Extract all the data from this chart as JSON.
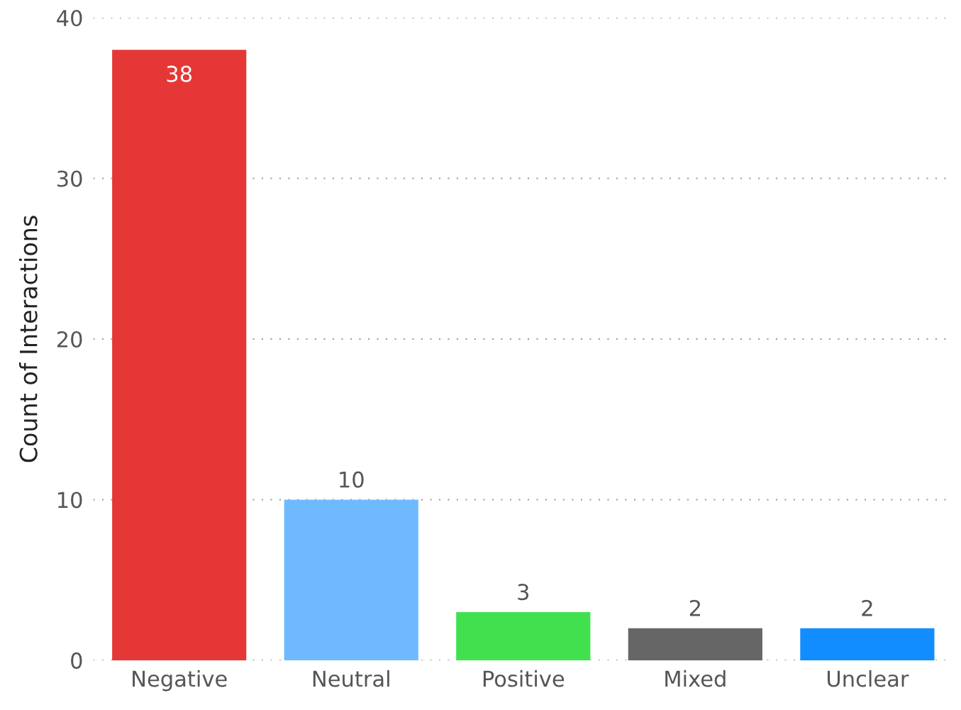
{
  "chart_data": {
    "type": "bar",
    "ylabel": "Count of Interactions",
    "categories": [
      "Negative",
      "Neutral",
      "Positive",
      "Mixed",
      "Unclear"
    ],
    "values": [
      38,
      10,
      3,
      2,
      2
    ],
    "colors": [
      "#e63737",
      "#6fbaff",
      "#41e04f",
      "#666666",
      "#118dff"
    ],
    "ylim": [
      0,
      40
    ],
    "yticks": [
      0,
      10,
      20,
      30,
      40
    ],
    "grid": "y",
    "data_labels": true
  }
}
